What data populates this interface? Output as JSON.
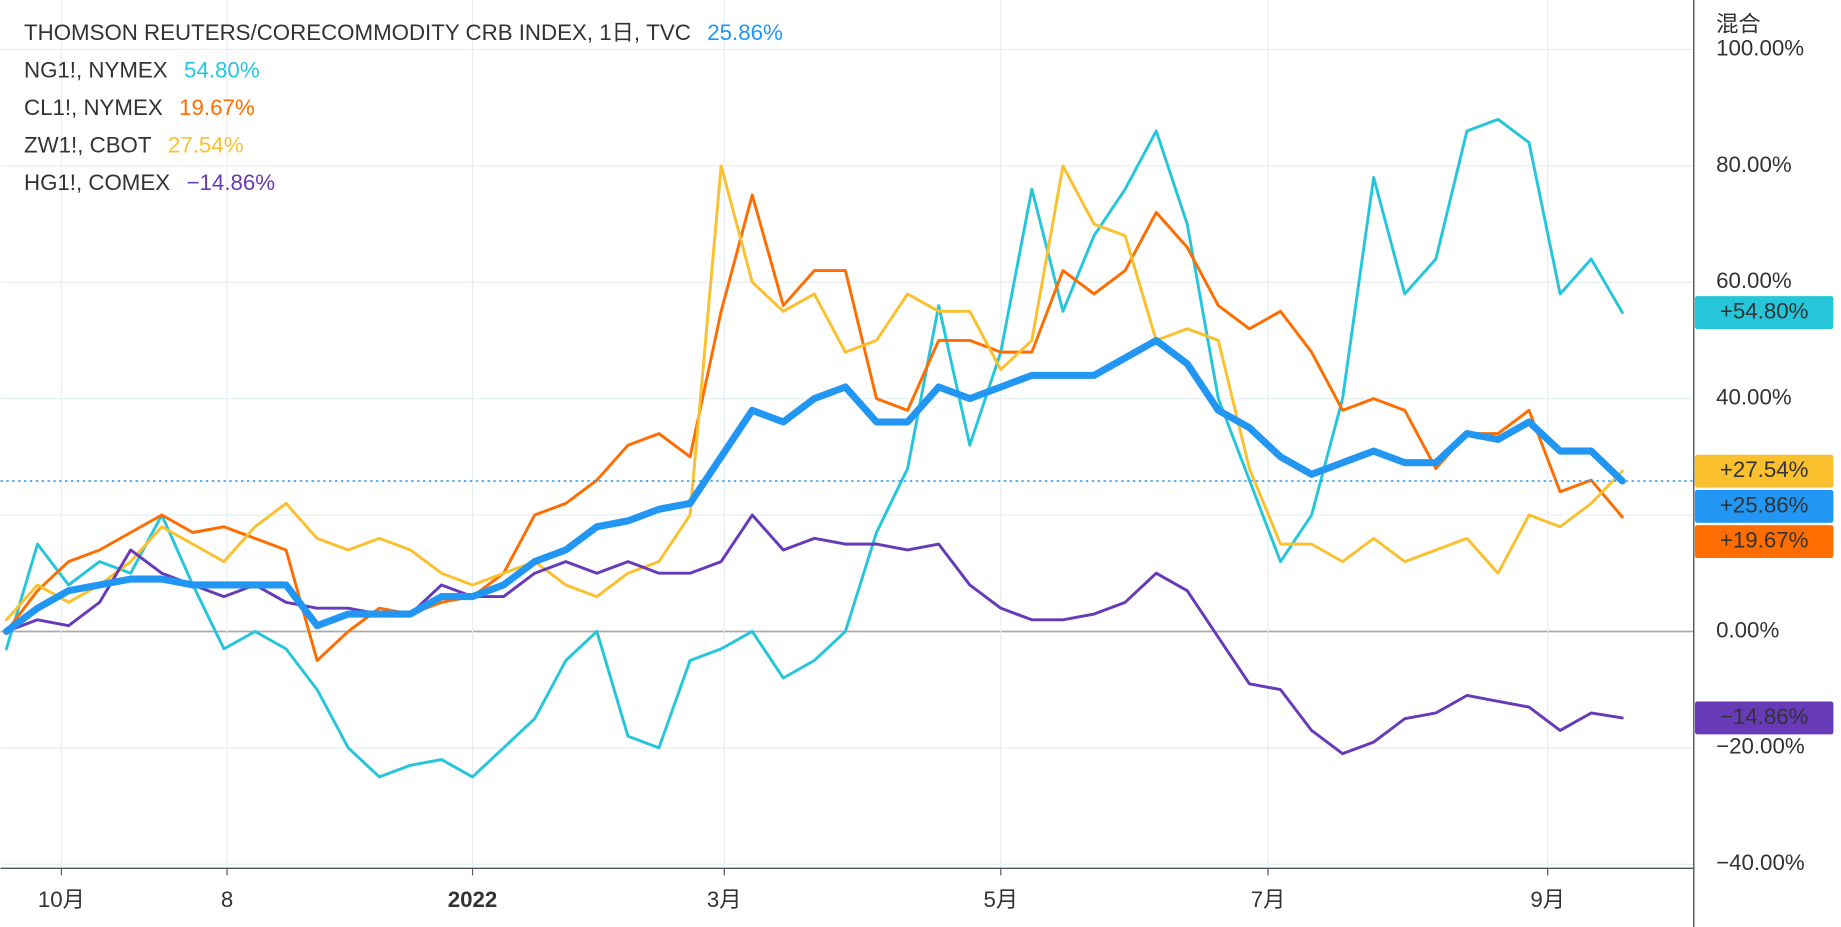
{
  "chart_data": {
    "type": "line",
    "corner_label": "混合",
    "xlim": [
      0,
      54.3
    ],
    "xticks": [
      {
        "value": 1.77,
        "label": "10月"
      },
      {
        "value": 7.1,
        "label": "8"
      },
      {
        "value": 15.0,
        "label": "2022"
      },
      {
        "value": 23.1,
        "label": "3月"
      },
      {
        "value": 32.0,
        "label": "5月"
      },
      {
        "value": 40.6,
        "label": "7月"
      },
      {
        "value": 49.6,
        "label": "9月"
      }
    ],
    "ylim": [
      -40.7,
      108.5
    ],
    "yticks": [
      {
        "value": -40,
        "label": "−40.00%"
      },
      {
        "value": -20,
        "label": "−20.00%"
      },
      {
        "value": 0,
        "label": "0.00%"
      },
      {
        "value": 20,
        "label": "20.00%"
      },
      {
        "value": 40,
        "label": "40.00%"
      },
      {
        "value": 60,
        "label": "60.00%"
      },
      {
        "value": 80,
        "label": "80.00%"
      },
      {
        "value": 100,
        "label": "100.00%"
      }
    ],
    "grid": true,
    "series": [
      {
        "name": "THOMSON REUTERS/CORECOMMODITY CRB INDEX, 1日, TVC",
        "legend_value": "25.86%",
        "badge": "+25.86%",
        "color": "#2196f3",
        "width": 6,
        "values": [
          0,
          4,
          7,
          8,
          9,
          9,
          8,
          8,
          8,
          8,
          1,
          3,
          3,
          3,
          6,
          6,
          8,
          12,
          14,
          18,
          19,
          21,
          22,
          30,
          38,
          36,
          40,
          42,
          36,
          36,
          42,
          40,
          42,
          44,
          44,
          44,
          47,
          50,
          46,
          38,
          35,
          30,
          27,
          29,
          31,
          29,
          29,
          34,
          33,
          36,
          31,
          31,
          25.86
        ]
      },
      {
        "name": "NG1!, NYMEX",
        "legend_value": "54.80%",
        "badge": "+54.80%",
        "color": "#26c6da",
        "width": 2.5,
        "values": [
          -3,
          15,
          8,
          12,
          10,
          20,
          8,
          -3,
          0,
          -3,
          -10,
          -20,
          -25,
          -23,
          -22,
          -25,
          -20,
          -15,
          -5,
          0,
          -18,
          -20,
          -5,
          -3,
          0,
          -8,
          -5,
          0,
          17,
          28,
          56,
          32,
          48,
          76,
          55,
          68,
          76,
          86,
          70,
          40,
          26,
          12,
          20,
          40,
          78,
          58,
          64,
          86,
          88,
          84,
          58,
          64,
          54.8
        ]
      },
      {
        "name": "CL1!, NYMEX",
        "legend_value": "19.67%",
        "badge": "+19.67%",
        "color": "#ff6d00",
        "width": 2.5,
        "values": [
          0,
          7,
          12,
          14,
          17,
          20,
          17,
          18,
          16,
          14,
          -5,
          0,
          4,
          3,
          5,
          6,
          10,
          20,
          22,
          26,
          32,
          34,
          30,
          55,
          75,
          56,
          62,
          62,
          40,
          38,
          50,
          50,
          48,
          48,
          62,
          58,
          62,
          72,
          66,
          56,
          52,
          55,
          48,
          38,
          40,
          38,
          28,
          34,
          34,
          38,
          24,
          26,
          19.67
        ]
      },
      {
        "name": "ZW1!, CBOT",
        "legend_value": "27.54%",
        "badge": "+27.54%",
        "color": "#fbc02d",
        "width": 2.5,
        "values": [
          2,
          8,
          5,
          8,
          12,
          18,
          15,
          12,
          18,
          22,
          16,
          14,
          16,
          14,
          10,
          8,
          10,
          12,
          8,
          6,
          10,
          12,
          20,
          80,
          60,
          55,
          58,
          48,
          50,
          58,
          55,
          55,
          45,
          50,
          80,
          70,
          68,
          50,
          52,
          50,
          28,
          15,
          15,
          12,
          16,
          12,
          14,
          16,
          10,
          20,
          18,
          22,
          27.54
        ]
      },
      {
        "name": "HG1!, COMEX",
        "legend_value": "−14.86%",
        "badge": "−14.86%",
        "color": "#673ab7",
        "width": 2.5,
        "values": [
          0,
          2,
          1,
          5,
          14,
          10,
          8,
          6,
          8,
          5,
          4,
          4,
          3,
          3,
          8,
          6,
          6,
          10,
          12,
          10,
          12,
          10,
          10,
          12,
          20,
          14,
          16,
          15,
          15,
          14,
          15,
          8,
          4,
          2,
          2,
          3,
          5,
          10,
          7,
          -1,
          -9,
          -10,
          -17,
          -21,
          -19,
          -15,
          -14,
          -11,
          -12,
          -13,
          -17,
          -14,
          -14.86
        ]
      }
    ]
  }
}
